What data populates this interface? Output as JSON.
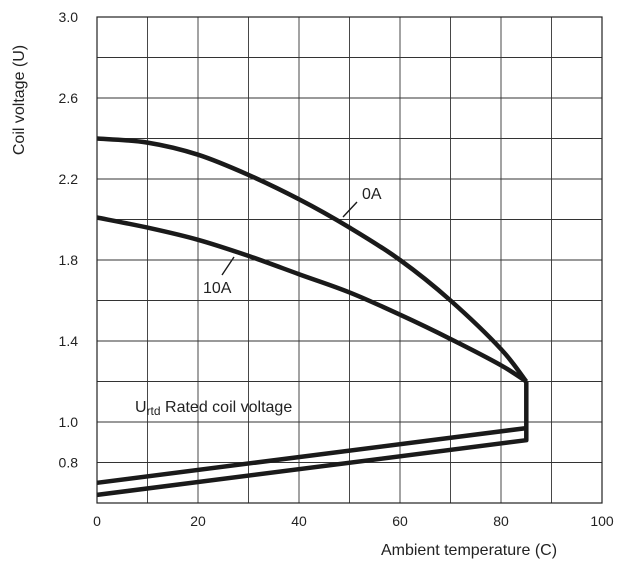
{
  "chart_data": {
    "type": "line",
    "xlabel": "Ambient temperature (C)",
    "ylabel": "Coil voltage (U)",
    "xlim": [
      0,
      100
    ],
    "ylim": [
      0.6,
      3.0
    ],
    "x_ticks": [
      "0",
      "20",
      "40",
      "60",
      "80",
      "100"
    ],
    "y_ticks": [
      "0.8",
      "1.0",
      "1.4",
      "1.8",
      "2.2",
      "2.6",
      "3.0"
    ],
    "grid": true,
    "series": [
      {
        "name": "0A",
        "points": [
          [
            0,
            2.4
          ],
          [
            10,
            2.38
          ],
          [
            20,
            2.32
          ],
          [
            30,
            2.22
          ],
          [
            40,
            2.1
          ],
          [
            50,
            1.96
          ],
          [
            60,
            1.8
          ],
          [
            70,
            1.6
          ],
          [
            80,
            1.36
          ],
          [
            85,
            1.2
          ]
        ]
      },
      {
        "name": "10A",
        "points": [
          [
            0,
            2.01
          ],
          [
            10,
            1.96
          ],
          [
            20,
            1.9
          ],
          [
            30,
            1.82
          ],
          [
            40,
            1.73
          ],
          [
            50,
            1.64
          ],
          [
            60,
            1.53
          ],
          [
            70,
            1.41
          ],
          [
            80,
            1.28
          ],
          [
            85,
            1.2
          ]
        ]
      },
      {
        "name": "",
        "points": [
          [
            85,
            1.2
          ],
          [
            85,
            0.97
          ],
          [
            0,
            0.7
          ]
        ]
      },
      {
        "name": "",
        "points": [
          [
            85,
            0.97
          ],
          [
            85,
            0.91
          ],
          [
            0,
            0.64
          ]
        ]
      }
    ],
    "annotations": {
      "label_0A": "0A",
      "label_10A": "10A",
      "rated_main": "U",
      "rated_sub": "rtd",
      "rated_rest": " Rated coil voltage"
    }
  }
}
